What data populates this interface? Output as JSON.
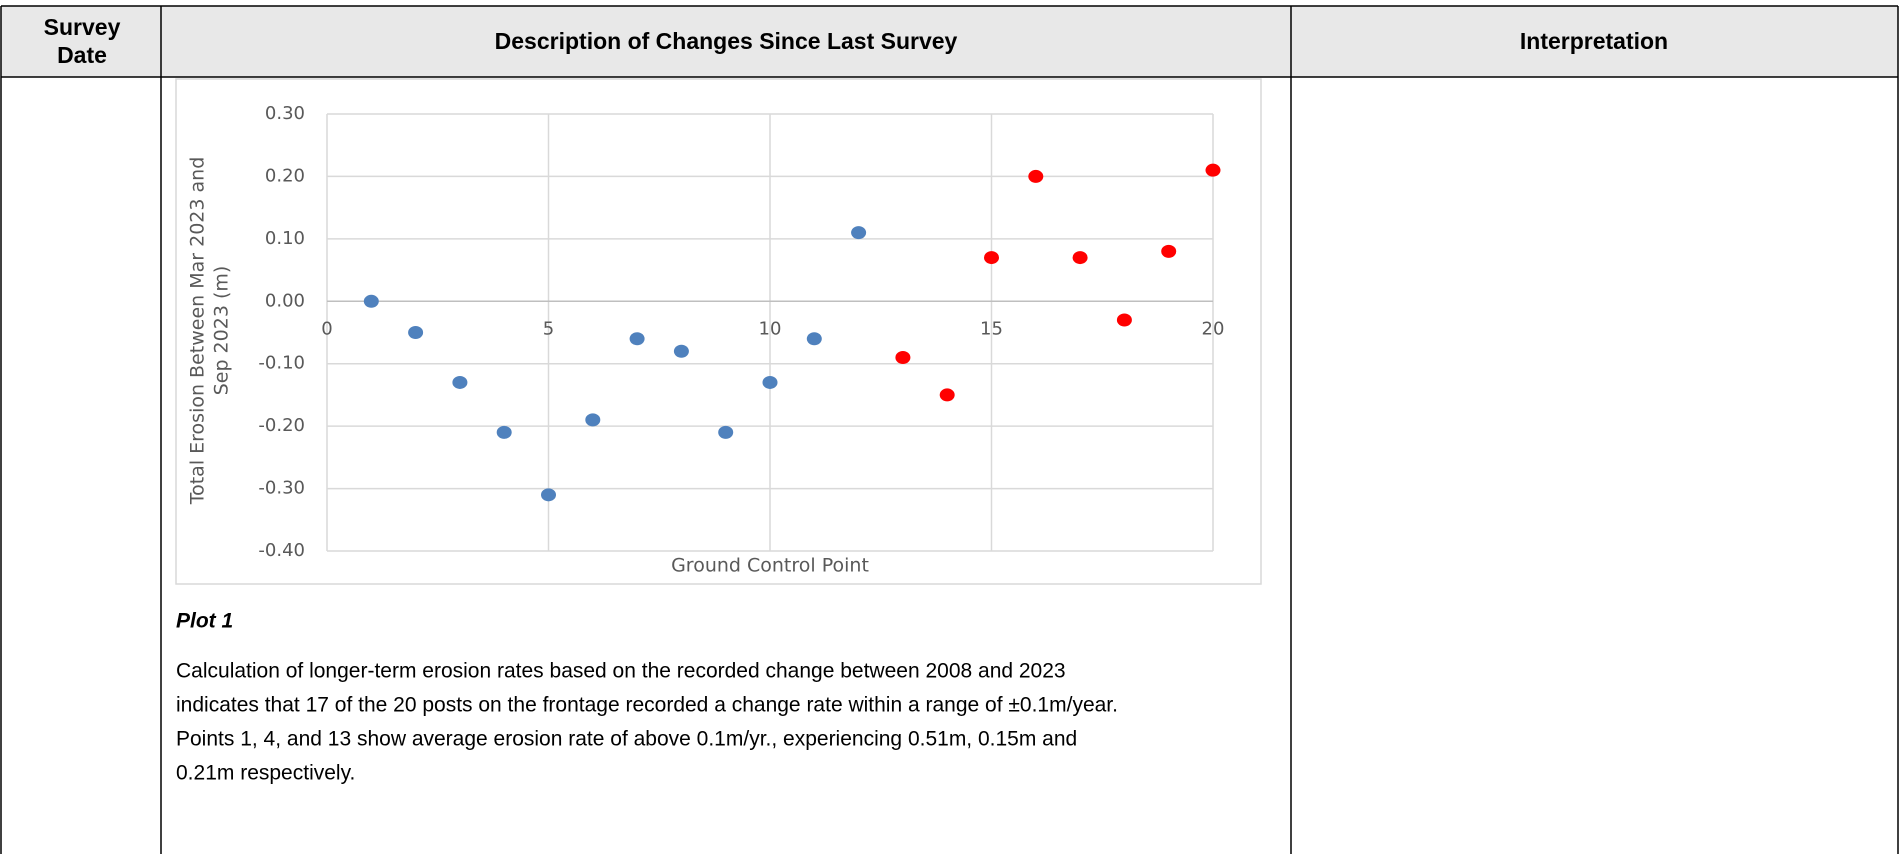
{
  "table": {
    "headers": [
      "Survey Date",
      "Description of Changes Since Last Survey",
      "Interpretation"
    ]
  },
  "survey_date_header_lines": [
    "Survey",
    "Date"
  ],
  "chart_data": {
    "type": "scatter",
    "xlabel": "Ground Control Point",
    "ylabel": [
      "Total Erosion Between Mar 2023 and",
      "Sep 2023 (m)"
    ],
    "xlim": [
      0,
      20
    ],
    "xticks": [
      0,
      5,
      10,
      15,
      20
    ],
    "ylim": [
      -0.4,
      0.3
    ],
    "yticks": [
      {
        "value": 0.3,
        "label": "0.30"
      },
      {
        "value": 0.2,
        "label": "0.20"
      },
      {
        "value": 0.1,
        "label": "0.10"
      },
      {
        "value": 0,
        "label": "0.00"
      },
      {
        "value": -0.1,
        "label": "-0.10"
      },
      {
        "value": -0.2,
        "label": "-0.20"
      },
      {
        "value": -0.3,
        "label": "-0.30"
      },
      {
        "value": -0.4,
        "label": "-0.40"
      }
    ],
    "grid": true,
    "series": [
      {
        "color": "#4f81bd",
        "x": [
          1,
          2,
          3,
          4,
          5,
          6,
          7,
          8,
          9,
          10,
          11,
          12
        ],
        "values": [
          0,
          -0.05,
          -0.13,
          -0.21,
          -0.31,
          -0.19,
          -0.06,
          -0.08,
          -0.21,
          -0.13,
          -0.06,
          0.11
        ]
      },
      {
        "color": "#ff0000",
        "x": [
          13,
          14,
          15,
          16,
          17,
          18,
          19,
          20
        ],
        "values": [
          -0.09,
          -0.15,
          0.07,
          0.2,
          0.07,
          -0.03,
          0.08,
          0.21
        ]
      }
    ]
  },
  "caption": "Plot 1",
  "paragraph": [
    "Calculation of longer-term erosion rates based on the recorded change between 2008 and 2023",
    "indicates that 17 of the 20 posts on the frontage recorded a change rate within a range of ±0.1m/year.",
    "Points 1, 4, and 13 show average erosion rate of above 0.1m/yr., experiencing 0.51m, 0.15m and",
    "0.21m respectively."
  ]
}
